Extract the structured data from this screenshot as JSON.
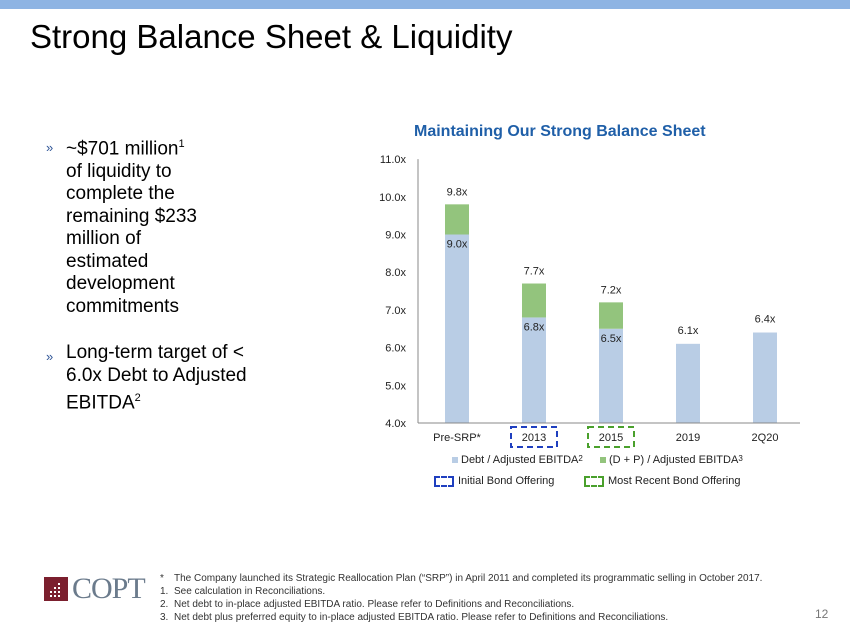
{
  "title": "Strong Balance Sheet & Liquidity",
  "bullets": [
    {
      "marker": "»",
      "text": "~$701 million",
      "sup": "1",
      "text2": "of liquidity to complete the remaining $233 million of estimated development commitments"
    },
    {
      "marker": "»",
      "text": "Long-term target of < 6.0x Debt to Adjusted EBITDA",
      "sup": "2"
    }
  ],
  "chart_data": {
    "type": "bar",
    "title": "Maintaining Our Strong Balance Sheet",
    "categories": [
      "Pre-SRP*",
      "2013",
      "2015",
      "2019",
      "2Q20"
    ],
    "series": [
      {
        "name": "Debt / Adjusted EBITDA",
        "sup": "2",
        "values": [
          9.0,
          6.8,
          6.5,
          6.1,
          6.4
        ],
        "color": "#b9cde5"
      },
      {
        "name": "(D + P) / Adjusted EBITDA",
        "sup": "3",
        "values": [
          9.8,
          7.7,
          7.2,
          null,
          null
        ],
        "color": "#93c47d"
      }
    ],
    "base_labels": [
      "9.0x",
      "6.8x",
      "6.5x",
      "6.1x",
      "6.4x"
    ],
    "total_labels": [
      "9.8x",
      "7.7x",
      "7.2x",
      "",
      ""
    ],
    "ylim": [
      4,
      11
    ],
    "yticks": [
      "4.0x",
      "5.0x",
      "6.0x",
      "7.0x",
      "8.0x",
      "9.0x",
      "10.0x",
      "11.0x"
    ],
    "highlights": [
      {
        "category": "2013",
        "label": "Initial Bond Offering",
        "color": "#1f3fbf"
      },
      {
        "category": "2015",
        "label": "Most Recent Bond Offering",
        "color": "#4aa02c"
      }
    ]
  },
  "footnotes": [
    {
      "n": "*",
      "text": "The Company launched its Strategic Reallocation Plan (“SRP”) in April 2011 and completed its programmatic selling in October 2017."
    },
    {
      "n": "1.",
      "text": "See calculation in Reconciliations."
    },
    {
      "n": "2.",
      "text": "Net debt to in-place adjusted EBITDA ratio. Please refer to Definitions and Reconciliations."
    },
    {
      "n": "3.",
      "text": "Net debt plus preferred equity to in-place adjusted EBITDA ratio. Please refer to Definitions and Reconciliations."
    }
  ],
  "logo": "COPT",
  "page_number": "12"
}
